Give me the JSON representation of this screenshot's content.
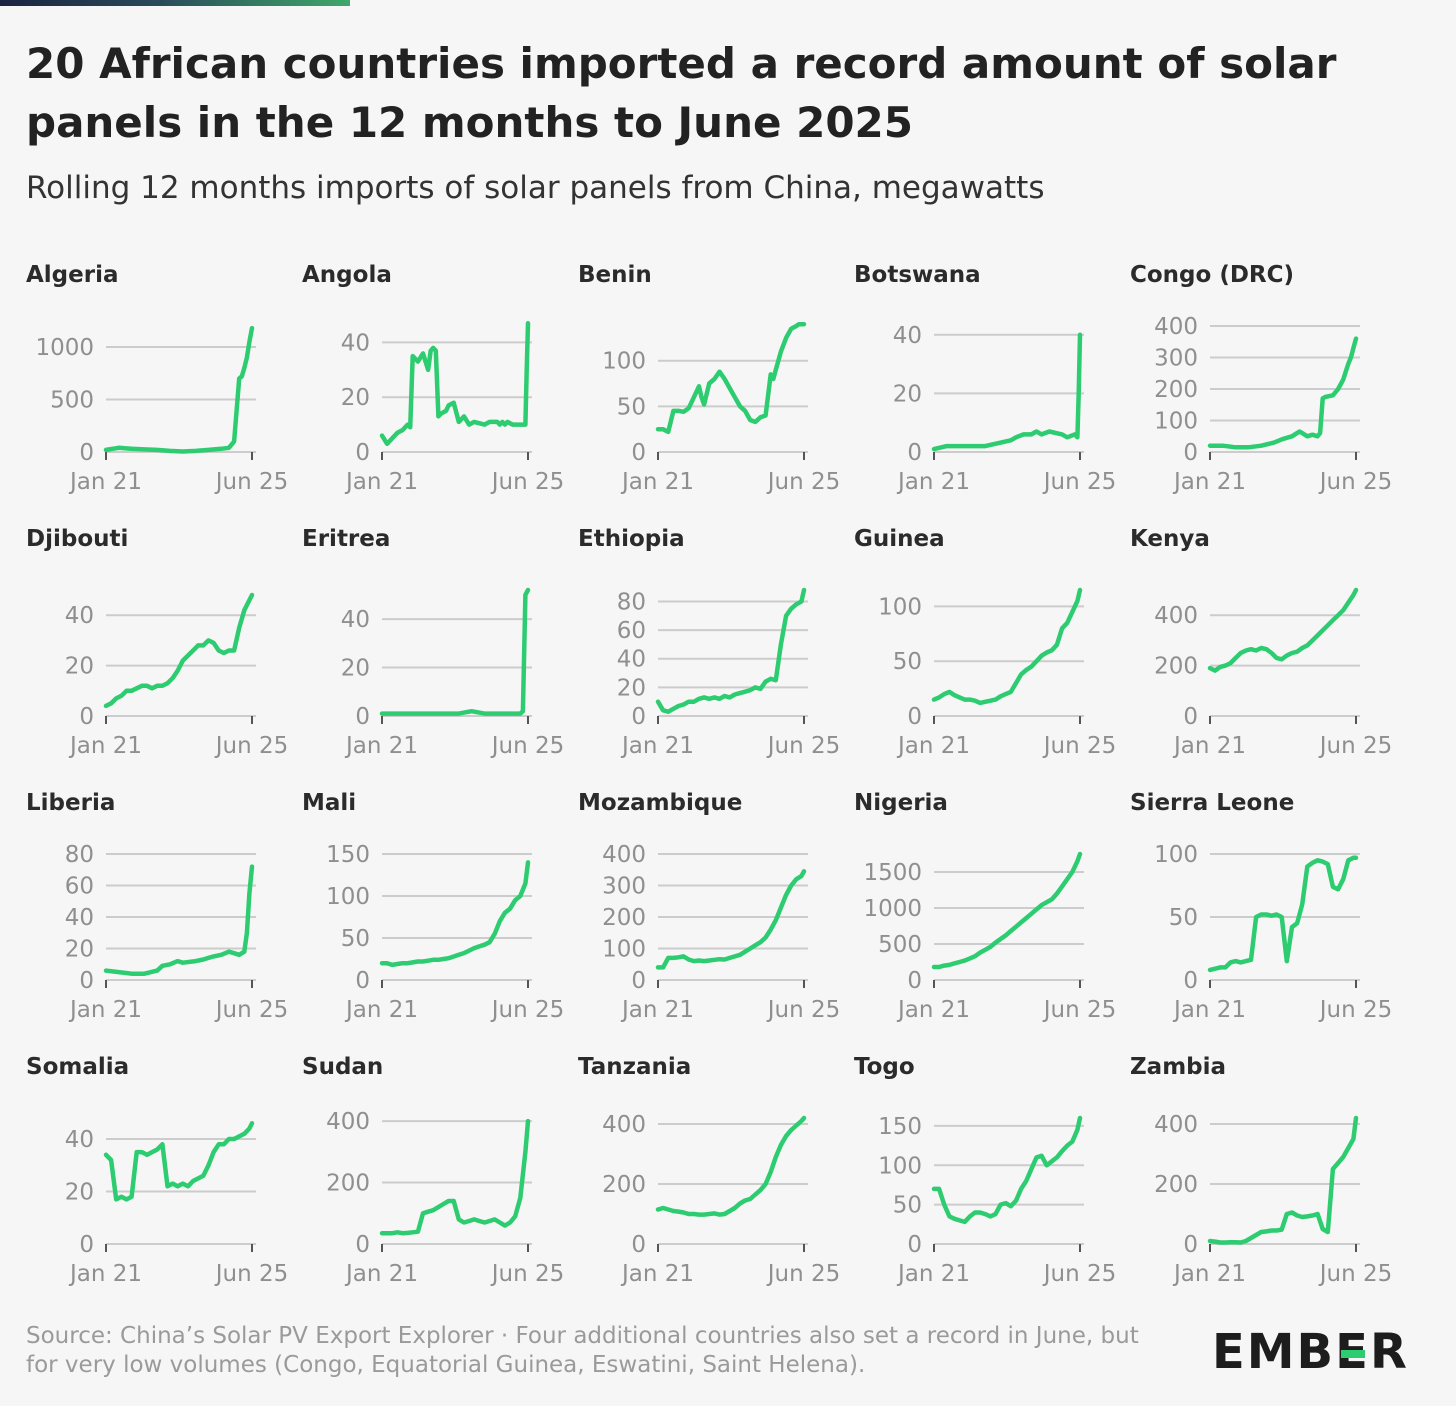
{
  "header": {
    "title": "20 African countries imported a record amount of solar panels in the 12 months to June 2025",
    "subtitle": "Rolling 12 months imports of solar panels from China, megawatts"
  },
  "footer": {
    "source": "Source: China’s Solar PV Export Explorer · Four additional countries also set a record in June, but for very low volumes (Congo, Equatorial Guinea, Eswatini, Saint Helena).",
    "logo_left": "EMB",
    "logo_mid": "E",
    "logo_right": "R"
  },
  "colors": {
    "line": "#2ecc71",
    "grid": "#cccccc",
    "axis_text": "#8f8f8f"
  },
  "chart_data": [
    {
      "type": "line",
      "title": "Algeria",
      "x_ticks": [
        "Jan 21",
        "Jun 25"
      ],
      "y_ticks": [
        0,
        500,
        1000
      ],
      "ylim": [
        0,
        1200
      ],
      "x": [
        0,
        5,
        10,
        15,
        20,
        25,
        30,
        35,
        40,
        45,
        48,
        50,
        52,
        53,
        54,
        55,
        56,
        57
      ],
      "y": [
        20,
        40,
        30,
        25,
        20,
        10,
        5,
        10,
        20,
        30,
        40,
        100,
        700,
        720,
        800,
        900,
        1050,
        1180
      ]
    },
    {
      "type": "line",
      "title": "Angola",
      "x_ticks": [
        "Jan 21",
        "Jun 25"
      ],
      "y_ticks": [
        0,
        20,
        40
      ],
      "ylim": [
        0,
        46
      ],
      "x": [
        0,
        2,
        4,
        6,
        8,
        10,
        11,
        12,
        14,
        16,
        18,
        19,
        20,
        21,
        22,
        23,
        25,
        26,
        28,
        30,
        32,
        34,
        36,
        40,
        42,
        45,
        46,
        47,
        48,
        49,
        51,
        55,
        56,
        56.5,
        57
      ],
      "y": [
        6,
        3,
        5,
        7,
        8,
        10,
        9,
        35,
        33,
        36,
        30,
        37,
        38,
        37,
        13,
        14,
        15,
        17,
        18,
        11,
        13,
        10,
        11,
        10,
        11,
        11,
        10,
        11,
        10,
        11,
        10,
        10,
        10,
        30,
        47
      ]
    },
    {
      "type": "line",
      "title": "Benin",
      "x_ticks": [
        "Jan 21",
        "Jun 25"
      ],
      "y_ticks": [
        0,
        50,
        100
      ],
      "ylim": [
        0,
        138
      ],
      "x": [
        0,
        2,
        4,
        6,
        8,
        10,
        12,
        14,
        16,
        17,
        18,
        20,
        22,
        24,
        26,
        28,
        30,
        32,
        34,
        36,
        38,
        40,
        42,
        44,
        45,
        46,
        48,
        50,
        52,
        54,
        55,
        56,
        57
      ],
      "y": [
        25,
        25,
        22,
        45,
        45,
        44,
        48,
        60,
        72,
        60,
        52,
        75,
        80,
        88,
        80,
        70,
        60,
        50,
        45,
        35,
        33,
        38,
        40,
        85,
        80,
        90,
        110,
        125,
        135,
        138,
        140,
        140,
        140
      ]
    },
    {
      "type": "line",
      "title": "Botswana",
      "x_ticks": [
        "Jan 21",
        "Jun 25"
      ],
      "y_ticks": [
        0,
        20,
        40
      ],
      "ylim": [
        0,
        43
      ],
      "x": [
        0,
        5,
        10,
        15,
        20,
        25,
        30,
        32,
        35,
        38,
        40,
        42,
        45,
        50,
        52,
        55,
        56,
        56.5,
        57
      ],
      "y": [
        1,
        2,
        2,
        2,
        2,
        3,
        4,
        5,
        6,
        6,
        7,
        6,
        7,
        6,
        5,
        6,
        5,
        20,
        40
      ]
    },
    {
      "type": "line",
      "title": "Congo (DRC)",
      "x_ticks": [
        "Jan 21",
        "Jun 25"
      ],
      "y_ticks": [
        0,
        100,
        200,
        300,
        400
      ],
      "ylim": [
        0,
        400
      ],
      "x": [
        0,
        5,
        10,
        15,
        20,
        25,
        28,
        30,
        32,
        33,
        34,
        35,
        36,
        38,
        40,
        42,
        43,
        44,
        45,
        48,
        50,
        52,
        54,
        55,
        56,
        57
      ],
      "y": [
        20,
        20,
        15,
        15,
        20,
        30,
        40,
        45,
        50,
        55,
        60,
        65,
        60,
        50,
        55,
        50,
        60,
        170,
        175,
        180,
        200,
        230,
        280,
        300,
        330,
        360
      ]
    },
    {
      "type": "line",
      "title": "Djibouti",
      "x_ticks": [
        "Jan 21",
        "Jun 25"
      ],
      "y_ticks": [
        0,
        20,
        40
      ],
      "ylim": [
        0,
        50
      ],
      "x": [
        0,
        2,
        4,
        6,
        8,
        10,
        12,
        14,
        16,
        18,
        20,
        22,
        24,
        26,
        28,
        30,
        32,
        34,
        36,
        38,
        40,
        42,
        44,
        46,
        48,
        50,
        52,
        54,
        56,
        57
      ],
      "y": [
        4,
        5,
        7,
        8,
        10,
        10,
        11,
        12,
        12,
        11,
        12,
        12,
        13,
        15,
        18,
        22,
        24,
        26,
        28,
        28,
        30,
        29,
        26,
        25,
        26,
        26,
        35,
        42,
        46,
        48
      ]
    },
    {
      "type": "line",
      "title": "Eritrea",
      "x_ticks": [
        "Jan 21",
        "Jun 25"
      ],
      "y_ticks": [
        0,
        20,
        40
      ],
      "ylim": [
        0,
        52
      ],
      "x": [
        0,
        5,
        10,
        15,
        20,
        25,
        30,
        35,
        40,
        45,
        50,
        52,
        54,
        55,
        56,
        57
      ],
      "y": [
        1,
        1,
        1,
        1,
        1,
        1,
        1,
        2,
        1,
        1,
        1,
        1,
        1,
        2,
        50,
        52
      ]
    },
    {
      "type": "line",
      "title": "Ethiopia",
      "x_ticks": [
        "Jan 21",
        "Jun 25"
      ],
      "y_ticks": [
        0,
        20,
        40,
        60,
        80
      ],
      "ylim": [
        0,
        88
      ],
      "x": [
        0,
        2,
        4,
        6,
        8,
        10,
        12,
        14,
        16,
        18,
        20,
        22,
        24,
        26,
        28,
        30,
        32,
        34,
        36,
        38,
        40,
        42,
        44,
        46,
        48,
        50,
        52,
        54,
        56,
        57
      ],
      "y": [
        10,
        4,
        3,
        5,
        7,
        8,
        10,
        10,
        12,
        13,
        12,
        13,
        12,
        14,
        13,
        15,
        16,
        17,
        18,
        20,
        19,
        24,
        26,
        25,
        50,
        70,
        75,
        78,
        80,
        88
      ]
    },
    {
      "type": "line",
      "title": "Guinea",
      "x_ticks": [
        "Jan 21",
        "Jun 25"
      ],
      "y_ticks": [
        0,
        50,
        100
      ],
      "ylim": [
        0,
        115
      ],
      "x": [
        0,
        2,
        4,
        6,
        8,
        10,
        12,
        14,
        16,
        18,
        20,
        22,
        24,
        26,
        28,
        30,
        32,
        34,
        36,
        38,
        40,
        42,
        44,
        46,
        48,
        50,
        52,
        54,
        56,
        57
      ],
      "y": [
        15,
        17,
        20,
        22,
        19,
        17,
        15,
        15,
        14,
        12,
        13,
        14,
        15,
        18,
        20,
        22,
        30,
        38,
        42,
        45,
        50,
        55,
        58,
        60,
        65,
        80,
        85,
        95,
        105,
        115
      ]
    },
    {
      "type": "line",
      "title": "Kenya",
      "x_ticks": [
        "Jan 21",
        "Jun 25"
      ],
      "y_ticks": [
        0,
        200,
        400
      ],
      "ylim": [
        0,
        500
      ],
      "x": [
        0,
        2,
        4,
        6,
        8,
        10,
        12,
        14,
        16,
        18,
        20,
        22,
        24,
        26,
        28,
        30,
        32,
        34,
        36,
        38,
        40,
        42,
        44,
        46,
        48,
        50,
        52,
        54,
        56,
        57
      ],
      "y": [
        190,
        180,
        195,
        200,
        210,
        230,
        250,
        260,
        265,
        260,
        270,
        265,
        250,
        230,
        225,
        240,
        250,
        255,
        270,
        280,
        300,
        320,
        340,
        360,
        380,
        400,
        420,
        450,
        480,
        500
      ]
    },
    {
      "type": "line",
      "title": "Liberia",
      "x_ticks": [
        "Jan 21",
        "Jun 25"
      ],
      "y_ticks": [
        0,
        20,
        40,
        60,
        80
      ],
      "ylim": [
        0,
        80
      ],
      "x": [
        0,
        5,
        10,
        15,
        20,
        22,
        25,
        28,
        30,
        35,
        38,
        40,
        42,
        45,
        48,
        50,
        52,
        53,
        54,
        55,
        56,
        57
      ],
      "y": [
        6,
        5,
        4,
        4,
        6,
        9,
        10,
        12,
        11,
        12,
        13,
        14,
        15,
        16,
        18,
        17,
        16,
        17,
        18,
        30,
        55,
        72
      ]
    },
    {
      "type": "line",
      "title": "Mali",
      "x_ticks": [
        "Jan 21",
        "Jun 25"
      ],
      "y_ticks": [
        0,
        50,
        100,
        150
      ],
      "ylim": [
        0,
        150
      ],
      "x": [
        0,
        2,
        4,
        6,
        8,
        10,
        12,
        14,
        16,
        18,
        20,
        22,
        24,
        26,
        28,
        30,
        32,
        34,
        36,
        38,
        40,
        42,
        44,
        46,
        48,
        50,
        52,
        54,
        56,
        57
      ],
      "y": [
        20,
        20,
        18,
        19,
        20,
        20,
        21,
        22,
        22,
        23,
        24,
        24,
        25,
        26,
        28,
        30,
        32,
        35,
        38,
        40,
        42,
        45,
        55,
        70,
        80,
        85,
        95,
        100,
        115,
        140
      ]
    },
    {
      "type": "line",
      "title": "Mozambique",
      "x_ticks": [
        "Jan 21",
        "Jun 25"
      ],
      "y_ticks": [
        0,
        100,
        200,
        300,
        400
      ],
      "ylim": [
        0,
        400
      ],
      "x": [
        0,
        2,
        4,
        6,
        8,
        10,
        12,
        14,
        16,
        18,
        20,
        22,
        24,
        26,
        28,
        30,
        32,
        34,
        36,
        38,
        40,
        42,
        44,
        46,
        48,
        50,
        52,
        54,
        56,
        57
      ],
      "y": [
        40,
        40,
        70,
        70,
        72,
        75,
        65,
        60,
        62,
        60,
        62,
        64,
        66,
        65,
        70,
        75,
        80,
        90,
        100,
        110,
        120,
        135,
        160,
        190,
        230,
        270,
        300,
        320,
        330,
        345
      ]
    },
    {
      "type": "line",
      "title": "Nigeria",
      "x_ticks": [
        "Jan 21",
        "Jun 25"
      ],
      "y_ticks": [
        0,
        500,
        1000,
        1500
      ],
      "ylim": [
        0,
        1750
      ],
      "x": [
        0,
        2,
        4,
        6,
        8,
        10,
        12,
        14,
        16,
        18,
        20,
        22,
        24,
        26,
        28,
        30,
        32,
        34,
        36,
        38,
        40,
        42,
        44,
        46,
        48,
        50,
        52,
        54,
        56,
        57
      ],
      "y": [
        180,
        180,
        200,
        210,
        230,
        250,
        270,
        300,
        330,
        380,
        420,
        460,
        520,
        570,
        620,
        680,
        740,
        800,
        860,
        920,
        980,
        1040,
        1080,
        1120,
        1200,
        1300,
        1400,
        1500,
        1650,
        1750
      ]
    },
    {
      "type": "line",
      "title": "Sierra Leone",
      "x_ticks": [
        "Jan 21",
        "Jun 25"
      ],
      "y_ticks": [
        0,
        50,
        100
      ],
      "ylim": [
        0,
        100
      ],
      "x": [
        0,
        2,
        4,
        6,
        8,
        10,
        12,
        14,
        16,
        18,
        20,
        22,
        24,
        26,
        28,
        30,
        32,
        34,
        36,
        38,
        40,
        42,
        44,
        46,
        48,
        50,
        52,
        54,
        56,
        57
      ],
      "y": [
        8,
        9,
        10,
        10,
        14,
        15,
        14,
        15,
        16,
        50,
        52,
        52,
        51,
        52,
        50,
        15,
        42,
        45,
        60,
        90,
        93,
        95,
        94,
        92,
        74,
        72,
        80,
        95,
        97,
        97
      ]
    },
    {
      "type": "line",
      "title": "Somalia",
      "x_ticks": [
        "Jan 21",
        "Jun 25"
      ],
      "y_ticks": [
        0,
        20,
        40
      ],
      "ylim": [
        0,
        48
      ],
      "x": [
        0,
        2,
        4,
        6,
        8,
        10,
        12,
        14,
        16,
        18,
        20,
        22,
        24,
        26,
        28,
        30,
        32,
        34,
        36,
        38,
        40,
        42,
        44,
        46,
        48,
        50,
        52,
        54,
        56,
        57
      ],
      "y": [
        34,
        32,
        17,
        18,
        17,
        18,
        35,
        35,
        34,
        35,
        36,
        38,
        22,
        23,
        22,
        23,
        22,
        24,
        25,
        26,
        30,
        35,
        38,
        38,
        40,
        40,
        41,
        42,
        44,
        46
      ]
    },
    {
      "type": "line",
      "title": "Sudan",
      "x_ticks": [
        "Jan 21",
        "Jun 25"
      ],
      "y_ticks": [
        0,
        200,
        400
      ],
      "ylim": [
        0,
        410
      ],
      "x": [
        0,
        2,
        4,
        6,
        8,
        10,
        12,
        14,
        16,
        18,
        20,
        22,
        24,
        26,
        28,
        30,
        32,
        34,
        36,
        38,
        40,
        42,
        44,
        46,
        48,
        50,
        52,
        54,
        56,
        57
      ],
      "y": [
        35,
        35,
        35,
        38,
        35,
        36,
        38,
        40,
        100,
        105,
        110,
        120,
        130,
        140,
        140,
        80,
        70,
        75,
        80,
        75,
        70,
        75,
        80,
        70,
        60,
        70,
        90,
        150,
        300,
        400
      ]
    },
    {
      "type": "line",
      "title": "Tanzania",
      "x_ticks": [
        "Jan 21",
        "Jun 25"
      ],
      "y_ticks": [
        0,
        200,
        400
      ],
      "ylim": [
        0,
        420
      ],
      "x": [
        0,
        2,
        4,
        6,
        8,
        10,
        12,
        14,
        16,
        18,
        20,
        22,
        24,
        26,
        28,
        30,
        32,
        34,
        36,
        38,
        40,
        42,
        44,
        46,
        48,
        50,
        52,
        54,
        56,
        57
      ],
      "y": [
        115,
        120,
        115,
        110,
        108,
        105,
        100,
        100,
        98,
        98,
        100,
        102,
        98,
        100,
        110,
        120,
        135,
        145,
        150,
        165,
        180,
        200,
        240,
        290,
        330,
        360,
        380,
        395,
        410,
        420
      ]
    },
    {
      "type": "line",
      "title": "Togo",
      "x_ticks": [
        "Jan 21",
        "Jun 25"
      ],
      "y_ticks": [
        0,
        50,
        100,
        150
      ],
      "ylim": [
        0,
        160
      ],
      "x": [
        0,
        2,
        4,
        6,
        8,
        10,
        12,
        14,
        16,
        18,
        20,
        22,
        24,
        26,
        28,
        30,
        32,
        34,
        36,
        38,
        40,
        42,
        44,
        46,
        48,
        50,
        52,
        54,
        56,
        57
      ],
      "y": [
        70,
        70,
        50,
        35,
        32,
        30,
        28,
        35,
        40,
        40,
        38,
        35,
        38,
        50,
        52,
        48,
        55,
        70,
        80,
        95,
        110,
        112,
        100,
        105,
        110,
        118,
        125,
        130,
        145,
        160
      ]
    },
    {
      "type": "line",
      "title": "Zambia",
      "x_ticks": [
        "Jan 21",
        "Jun 25"
      ],
      "y_ticks": [
        0,
        200,
        400
      ],
      "ylim": [
        0,
        420
      ],
      "x": [
        0,
        2,
        4,
        6,
        8,
        10,
        12,
        14,
        16,
        18,
        20,
        22,
        24,
        26,
        28,
        30,
        32,
        34,
        36,
        38,
        40,
        42,
        44,
        46,
        48,
        50,
        52,
        54,
        56,
        57
      ],
      "y": [
        10,
        8,
        5,
        5,
        6,
        6,
        5,
        10,
        20,
        30,
        40,
        42,
        45,
        45,
        48,
        100,
        105,
        95,
        90,
        92,
        95,
        100,
        50,
        40,
        250,
        270,
        290,
        320,
        350,
        420
      ]
    }
  ]
}
